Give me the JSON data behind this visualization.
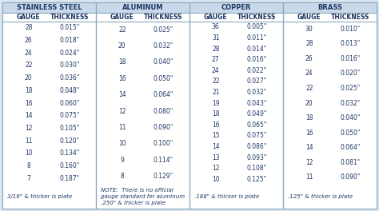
{
  "bg_color": "#ffffff",
  "title_bg": "#c9d9ea",
  "panel_bg": "#ffffff",
  "text_color": "#1f3864",
  "border_color": "#8baabf",
  "outer_bg": "#dce6f1",
  "title_fontsize": 6.0,
  "header_fontsize": 5.5,
  "data_fontsize": 5.5,
  "note_fontsize": 5.0,
  "sections": [
    {
      "title": "STAINLESS STEEL",
      "col1": "GAUGE",
      "col2": "THICKNESS",
      "data": [
        [
          "28",
          "0.015\""
        ],
        [
          "26",
          "0.018\""
        ],
        [
          "24",
          "0.024\""
        ],
        [
          "22",
          "0.030\""
        ],
        [
          "20",
          "0.036\""
        ],
        [
          "18",
          "0.048\""
        ],
        [
          "16",
          "0.060\""
        ],
        [
          "14",
          "0.075\""
        ],
        [
          "12",
          "0.105\""
        ],
        [
          "11",
          "0.120\""
        ],
        [
          "10",
          "0.134\""
        ],
        [
          "8",
          "0.160\""
        ],
        [
          "7",
          "0.187\""
        ]
      ],
      "note": "3/16\" & thicker is plate"
    },
    {
      "title": "ALUMINUM",
      "col1": "GAUGE",
      "col2": "THICKNESS",
      "data": [
        [
          "22",
          "0.025\""
        ],
        [
          "20",
          "0.032\""
        ],
        [
          "18",
          "0.040\""
        ],
        [
          "16",
          "0.050\""
        ],
        [
          "14",
          "0.064\""
        ],
        [
          "12",
          "0.080\""
        ],
        [
          "11",
          "0.090\""
        ],
        [
          "10",
          "0.100\""
        ],
        [
          "9",
          "0.114\""
        ],
        [
          "8",
          "0.129\""
        ]
      ],
      "note": "NOTE:  There is no official\ngauge standard for aluminum\n.250\" & thicker is plate"
    },
    {
      "title": "COPPER",
      "col1": "GAUGE",
      "col2": "THICKNESS",
      "data": [
        [
          "36",
          "0.005\""
        ],
        [
          "31",
          "0.011\""
        ],
        [
          "28",
          "0.014\""
        ],
        [
          "27",
          "0.016\""
        ],
        [
          "24",
          "0.022\""
        ],
        [
          "22",
          "0.027\""
        ],
        [
          "21",
          "0.032\""
        ],
        [
          "19",
          "0.043\""
        ],
        [
          "18",
          "0.049\""
        ],
        [
          "16",
          "0.065\""
        ],
        [
          "15",
          "0.075\""
        ],
        [
          "14",
          "0.086\""
        ],
        [
          "13",
          "0.093\""
        ],
        [
          "12",
          "0.108\""
        ],
        [
          "10",
          "0.125\""
        ]
      ],
      "note": ".188\" & thicker is plate"
    },
    {
      "title": "BRASS",
      "col1": "GAUGE",
      "col2": "THICKNESS",
      "data": [
        [
          "30",
          "0.010\""
        ],
        [
          "28",
          "0.013\""
        ],
        [
          "26",
          "0.016\""
        ],
        [
          "24",
          "0.020\""
        ],
        [
          "22",
          "0.025\""
        ],
        [
          "20",
          "0.032\""
        ],
        [
          "18",
          "0.040\""
        ],
        [
          "16",
          "0.050\""
        ],
        [
          "14",
          "0.064\""
        ],
        [
          "12",
          "0.081\""
        ],
        [
          "11",
          "0.090\""
        ]
      ],
      "note": ".125\" & thicker is plate"
    }
  ]
}
